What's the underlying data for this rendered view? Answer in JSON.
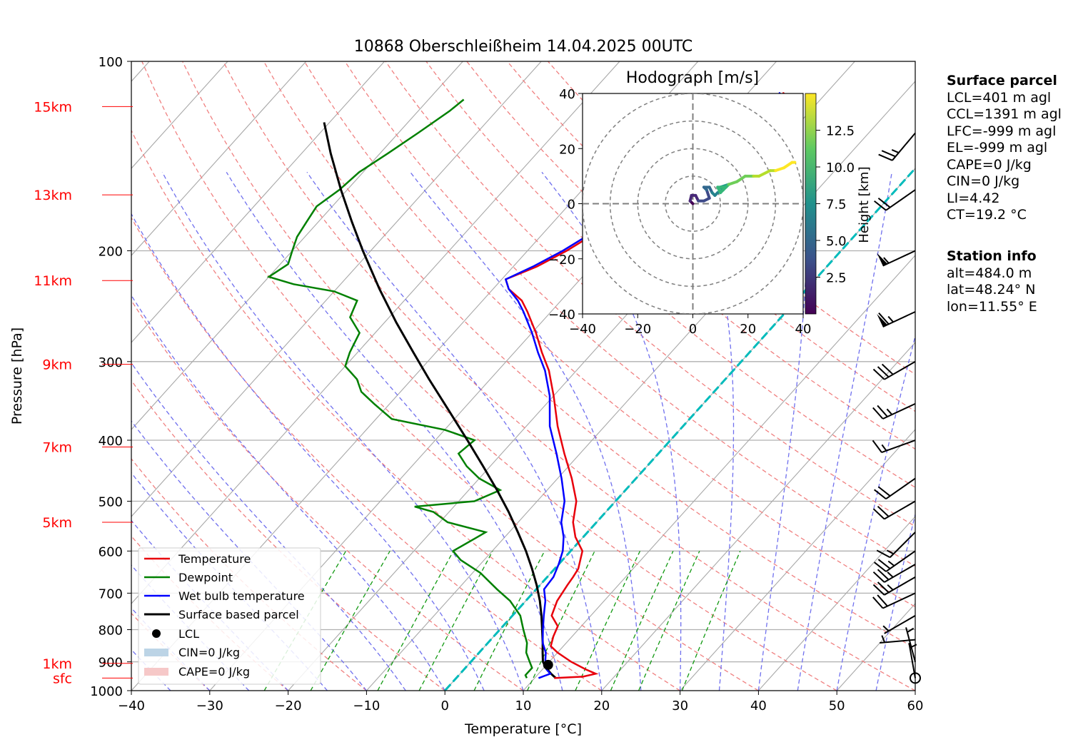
{
  "chart_data": {
    "type": "skew-t",
    "title": "10868 Oberschleißheim 14.04.2025 00UTC",
    "xlabel": "Temperature [°C]",
    "ylabel": "Pressure [hPa]",
    "xlim": [
      -40,
      60
    ],
    "ylim_hPa": [
      1000,
      100
    ],
    "x_ticks": [
      -40,
      -30,
      -20,
      -10,
      0,
      10,
      20,
      30,
      40,
      50,
      60
    ],
    "y_ticks": [
      1000,
      900,
      800,
      700,
      600,
      500,
      400,
      300,
      200,
      100
    ],
    "x_tick_labels": [
      "−40",
      "−30",
      "−20",
      "−10",
      "0",
      "10",
      "20",
      "30",
      "40",
      "50",
      "60"
    ],
    "y_tick_labels": [
      "1000",
      "900",
      "800",
      "700",
      "600",
      "500",
      "400",
      "300",
      "200",
      "100"
    ],
    "height_labels": [
      {
        "label": "sfc",
        "p": 955
      },
      {
        "label": "1km",
        "p": 905
      },
      {
        "label": "5km",
        "p": 540
      },
      {
        "label": "7km",
        "p": 410
      },
      {
        "label": "9km",
        "p": 303
      },
      {
        "label": "11km",
        "p": 223
      },
      {
        "label": "13km",
        "p": 163
      },
      {
        "label": "15km",
        "p": 118
      }
    ],
    "legend_position": "lower-left",
    "legend": [
      "Temperature",
      "Dewpoint",
      "Wet bulb temperature",
      "Surface based parcel",
      "LCL",
      "CIN=0 J/kg",
      "CAPE=0 J/kg"
    ],
    "colors": {
      "temperature": "#e8000b",
      "dewpoint": "#008000",
      "wetbulb": "#0000ff",
      "parcel": "#000000",
      "cin": "#bcd4e6",
      "cape": "#f6c8c8",
      "dry_adiabat": "#f08080",
      "moist_adiabat": "#7070ee",
      "mixing_ratio": "#119911",
      "zero_isotherm": "#00bbbb"
    },
    "series": {
      "temperature": [
        [
          955,
          12.5
        ],
        [
          950,
          16.0
        ],
        [
          940,
          17.3
        ],
        [
          925,
          15.5
        ],
        [
          900,
          12.8
        ],
        [
          870,
          10.0
        ],
        [
          850,
          8.4
        ],
        [
          820,
          7.6
        ],
        [
          790,
          7.0
        ],
        [
          760,
          5.0
        ],
        [
          720,
          4.0
        ],
        [
          680,
          3.5
        ],
        [
          660,
          3.3
        ],
        [
          640,
          3.0
        ],
        [
          600,
          1.5
        ],
        [
          570,
          -1.0
        ],
        [
          540,
          -3.0
        ],
        [
          500,
          -5.0
        ],
        [
          460,
          -8.2
        ],
        [
          420,
          -12.0
        ],
        [
          380,
          -16.0
        ],
        [
          340,
          -20.0
        ],
        [
          310,
          -23.5
        ],
        [
          290,
          -26.5
        ],
        [
          270,
          -29.5
        ],
        [
          250,
          -33.0
        ],
        [
          240,
          -35.0
        ],
        [
          230,
          -38.0
        ],
        [
          222,
          -39.5
        ],
        [
          212,
          -37.0
        ],
        [
          200,
          -35.0
        ],
        [
          185,
          -33.0
        ],
        [
          170,
          -30.0
        ],
        [
          160,
          -28.0
        ],
        [
          150,
          -27.5
        ],
        [
          140,
          -26.5
        ],
        [
          130,
          -25.0
        ],
        [
          120,
          -24.5
        ],
        [
          112,
          -25.5
        ]
      ],
      "dewpoint": [
        [
          955,
          9.0
        ],
        [
          945,
          8.5
        ],
        [
          920,
          8.5
        ],
        [
          900,
          7.5
        ],
        [
          870,
          6.0
        ],
        [
          840,
          5.0
        ],
        [
          800,
          3.0
        ],
        [
          760,
          1.0
        ],
        [
          720,
          -2.0
        ],
        [
          690,
          -5.0
        ],
        [
          650,
          -9.0
        ],
        [
          620,
          -13.0
        ],
        [
          600,
          -15.0
        ],
        [
          570,
          -13.5
        ],
        [
          560,
          -13.0
        ],
        [
          540,
          -19.0
        ],
        [
          520,
          -22.0
        ],
        [
          510,
          -25.0
        ],
        [
          500,
          -18.0
        ],
        [
          480,
          -16.0
        ],
        [
          460,
          -20.0
        ],
        [
          440,
          -23.0
        ],
        [
          420,
          -25.5
        ],
        [
          400,
          -25.0
        ],
        [
          385,
          -30.0
        ],
        [
          370,
          -38.0
        ],
        [
          350,
          -42.0
        ],
        [
          335,
          -45.0
        ],
        [
          320,
          -47.0
        ],
        [
          305,
          -50.0
        ],
        [
          290,
          -51.0
        ],
        [
          270,
          -52.0
        ],
        [
          255,
          -55.0
        ],
        [
          240,
          -56.0
        ],
        [
          232,
          -60.0
        ],
        [
          226,
          -66.0
        ],
        [
          220,
          -70.0
        ],
        [
          210,
          -69.0
        ],
        [
          200,
          -70.0
        ],
        [
          190,
          -71.0
        ],
        [
          180,
          -71.5
        ],
        [
          170,
          -72.0
        ],
        [
          160,
          -71.0
        ],
        [
          150,
          -70.5
        ],
        [
          140,
          -69.0
        ],
        [
          130,
          -67.5
        ],
        [
          120,
          -66.0
        ],
        [
          115,
          -65.5
        ]
      ],
      "wetbulb": [
        [
          955,
          10.5
        ],
        [
          940,
          11.5
        ],
        [
          925,
          10.5
        ],
        [
          900,
          9.5
        ],
        [
          870,
          8.5
        ],
        [
          840,
          7.0
        ],
        [
          800,
          5.5
        ],
        [
          760,
          4.0
        ],
        [
          720,
          2.5
        ],
        [
          690,
          1.0
        ],
        [
          660,
          0.8
        ],
        [
          630,
          0.0
        ],
        [
          600,
          -1.0
        ],
        [
          570,
          -2.5
        ],
        [
          540,
          -4.5
        ],
        [
          500,
          -6.5
        ],
        [
          460,
          -9.5
        ],
        [
          420,
          -13.0
        ],
        [
          380,
          -17.0
        ],
        [
          340,
          -20.5
        ],
        [
          310,
          -24.0
        ],
        [
          290,
          -27.0
        ],
        [
          270,
          -30.0
        ],
        [
          250,
          -33.5
        ],
        [
          240,
          -35.5
        ],
        [
          230,
          -38.0
        ],
        [
          222,
          -39.5
        ],
        [
          212,
          -37.5
        ],
        [
          200,
          -35.5
        ],
        [
          185,
          -33.5
        ],
        [
          170,
          -30.5
        ],
        [
          160,
          -28.5
        ],
        [
          150,
          -28.0
        ],
        [
          140,
          -27.0
        ],
        [
          130,
          -25.5
        ],
        [
          120,
          -25.0
        ],
        [
          112,
          -26.0
        ]
      ],
      "parcel": [
        [
          955,
          12.7
        ],
        [
          940,
          11.6
        ],
        [
          920,
          10.3
        ],
        [
          900,
          9.2
        ],
        [
          870,
          8.1
        ],
        [
          840,
          7.0
        ],
        [
          800,
          5.4
        ],
        [
          760,
          3.7
        ],
        [
          720,
          1.8
        ],
        [
          680,
          -0.4
        ],
        [
          640,
          -2.9
        ],
        [
          600,
          -5.7
        ],
        [
          560,
          -8.9
        ],
        [
          520,
          -12.4
        ],
        [
          480,
          -16.4
        ],
        [
          440,
          -20.9
        ],
        [
          400,
          -25.9
        ],
        [
          360,
          -31.5
        ],
        [
          320,
          -37.8
        ],
        [
          290,
          -42.9
        ],
        [
          260,
          -48.5
        ],
        [
          230,
          -54.5
        ],
        [
          200,
          -61.0
        ],
        [
          180,
          -65.7
        ],
        [
          160,
          -70.8
        ],
        [
          140,
          -76.3
        ],
        [
          125,
          -80.7
        ]
      ],
      "lcl": {
        "p": 910,
        "t": 10.2
      },
      "zero_isotherm": 0
    },
    "wind_barbs": [
      {
        "p": 955,
        "dir": 350,
        "kt": 3
      },
      {
        "p": 900,
        "dir": 345,
        "kt": 5
      },
      {
        "p": 830,
        "dir": 265,
        "kt": 6
      },
      {
        "p": 760,
        "dir": 240,
        "kt": 6
      },
      {
        "p": 700,
        "dir": 245,
        "kt": 22
      },
      {
        "p": 660,
        "dir": 240,
        "kt": 25
      },
      {
        "p": 630,
        "dir": 240,
        "kt": 25
      },
      {
        "p": 600,
        "dir": 235,
        "kt": 25
      },
      {
        "p": 560,
        "dir": 225,
        "kt": 15
      },
      {
        "p": 500,
        "dir": 240,
        "kt": 20
      },
      {
        "p": 460,
        "dir": 235,
        "kt": 20
      },
      {
        "p": 400,
        "dir": 250,
        "kt": 15
      },
      {
        "p": 350,
        "dir": 245,
        "kt": 25
      },
      {
        "p": 300,
        "dir": 240,
        "kt": 30
      },
      {
        "p": 250,
        "dir": 245,
        "kt": 65
      },
      {
        "p": 200,
        "dir": 245,
        "kt": 55
      },
      {
        "p": 160,
        "dir": 235,
        "kt": 20
      },
      {
        "p": 130,
        "dir": 220,
        "kt": 25
      }
    ],
    "hodograph": {
      "title": "Hodograph [m/s]",
      "colorbar_label": "Height [km]",
      "colorbar_ticks": [
        "2.5",
        "5.0",
        "7.5",
        "10.0",
        "12.5"
      ],
      "tick_values": [
        -40,
        -20,
        0,
        20,
        40
      ],
      "tick_labels": [
        "−40",
        "−20",
        "0",
        "20",
        "40"
      ],
      "lim": [
        -40,
        40
      ],
      "rings": [
        10,
        20,
        30,
        40
      ],
      "height_range_km": [
        0,
        15
      ],
      "points": [
        [
          0,
          0,
          0.5
        ],
        [
          -1,
          1,
          1.0
        ],
        [
          -0.5,
          3,
          1.5
        ],
        [
          1,
          3,
          2.0
        ],
        [
          2,
          1,
          2.5
        ],
        [
          4,
          1,
          3.0
        ],
        [
          6,
          2,
          3.5
        ],
        [
          5,
          5,
          4.0
        ],
        [
          4,
          6,
          4.5
        ],
        [
          6,
          6,
          5.0
        ],
        [
          7,
          4,
          5.5
        ],
        [
          8,
          3,
          6.0
        ],
        [
          9,
          4,
          6.5
        ],
        [
          11,
          5,
          7.0
        ],
        [
          10,
          6,
          7.5
        ],
        [
          13,
          7,
          8.0
        ],
        [
          12,
          6,
          8.5
        ],
        [
          9,
          6,
          9.0
        ],
        [
          10,
          4,
          9.5
        ],
        [
          13,
          7,
          10.0
        ],
        [
          16,
          8,
          10.5
        ],
        [
          19,
          10,
          11.0
        ],
        [
          22,
          10,
          11.5
        ],
        [
          24,
          10,
          12.0
        ],
        [
          28,
          12,
          12.5
        ],
        [
          30,
          12,
          13.0
        ],
        [
          33,
          13,
          13.5
        ],
        [
          36,
          15,
          14.0
        ],
        [
          37,
          15,
          14.5
        ]
      ]
    }
  },
  "panels": {
    "surface_parcel": {
      "title": "Surface parcel",
      "lines": [
        "LCL=401 m agl",
        "CCL=1391 m agl",
        "LFC=-999 m agl",
        "EL=-999 m agl",
        "CAPE=0 J/kg",
        "CIN=0 J/kg",
        "LI=4.42",
        "CT=19.2 °C"
      ]
    },
    "station_info": {
      "title": "Station info",
      "lines": [
        "alt=484.0 m",
        "lat=48.24° N",
        "lon=11.55° E"
      ]
    }
  }
}
